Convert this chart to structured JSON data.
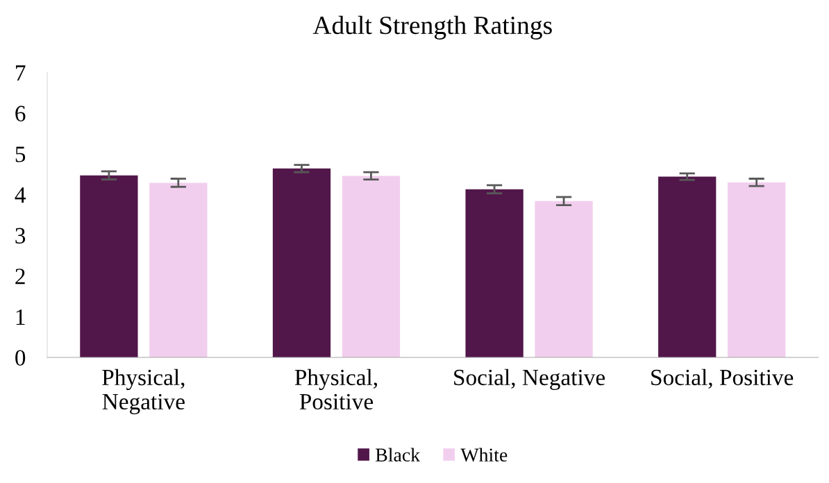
{
  "chart_data": {
    "type": "bar",
    "title": "Adult Strength Ratings",
    "categories": [
      "Physical,\nNegative",
      "Physical,\nPositive",
      "Social, Negative",
      "Social, Positive"
    ],
    "series": [
      {
        "name": "Black",
        "color": "#52174a",
        "values": [
          4.47,
          4.64,
          4.13,
          4.44
        ],
        "errors": [
          0.1,
          0.09,
          0.1,
          0.08
        ]
      },
      {
        "name": "White",
        "color": "#f2ceee",
        "values": [
          4.29,
          4.46,
          3.84,
          4.3
        ],
        "errors": [
          0.1,
          0.09,
          0.1,
          0.09
        ]
      }
    ],
    "ylim": [
      0,
      7
    ],
    "yticks": [
      0,
      1,
      2,
      3,
      4,
      5,
      6,
      7
    ],
    "grid": false,
    "legend": "bottom"
  }
}
